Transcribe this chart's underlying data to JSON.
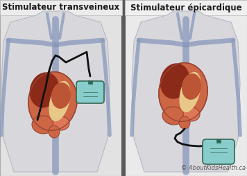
{
  "title_left": "Stimulateur transveineux",
  "title_right": "Stimulateur épicardique",
  "copyright": "© AboutKidsHealth.ca",
  "bg_color": "#e0e0e0",
  "panel_left_bg": "#e2e2e2",
  "panel_right_bg": "#eaeaea",
  "divider_color": "#5a5a5a",
  "body_fill": "#d8d8dc",
  "body_edge": "#b8b8c8",
  "vein_color": "#8899bb",
  "vein_alpha": 0.75,
  "heart_base": "#cc6644",
  "heart_dark": "#8b2a18",
  "heart_mid": "#bb5535",
  "heart_cream": "#e8c888",
  "heart_top": "#dd7755",
  "lead_color": "#111111",
  "device_fill": "#88cccc",
  "device_edge": "#336655",
  "device_fill2": "#aadddd",
  "title_fontsize": 8.5,
  "copyright_fontsize": 6.0,
  "panel_title_bg": "#f0f0f0"
}
